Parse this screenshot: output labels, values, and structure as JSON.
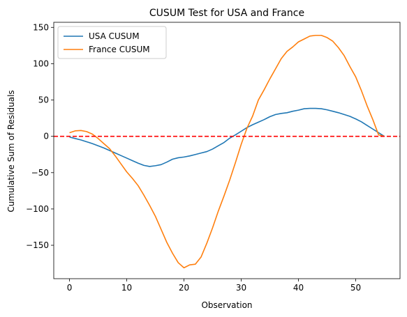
{
  "chart_data": {
    "type": "line",
    "title": "CUSUM Test for USA and France",
    "xlabel": "Observation",
    "ylabel": "Cumulative Sum of Residuals",
    "xlim": [
      -2.75,
      57.75
    ],
    "ylim": [
      -196,
      157
    ],
    "xticks": [
      0,
      10,
      20,
      30,
      40,
      50
    ],
    "yticks": [
      -150,
      -100,
      -50,
      0,
      50,
      100,
      150
    ],
    "grid": false,
    "legend_position": "top-left",
    "reference_line": {
      "y": 0,
      "color": "#ff0000",
      "style": "dashed"
    },
    "series": [
      {
        "name": "USA CUSUM",
        "color": "#1f77b4",
        "x": [
          0,
          1,
          2,
          3,
          4,
          5,
          6,
          7,
          8,
          9,
          10,
          11,
          12,
          13,
          14,
          15,
          16,
          17,
          18,
          19,
          20,
          21,
          22,
          23,
          24,
          25,
          26,
          27,
          28,
          29,
          30,
          31,
          32,
          33,
          34,
          35,
          36,
          37,
          38,
          39,
          40,
          41,
          42,
          43,
          44,
          45,
          46,
          47,
          48,
          49,
          50,
          51,
          52,
          53,
          54,
          55
        ],
        "y": [
          -1,
          -3,
          -5,
          -7.5,
          -10,
          -13,
          -16,
          -19.5,
          -23,
          -26.5,
          -30,
          -33.5,
          -37,
          -40,
          -41.5,
          -40.5,
          -39,
          -35.5,
          -31.5,
          -29.5,
          -28.5,
          -27,
          -25,
          -23,
          -21,
          -17.5,
          -13,
          -8.5,
          -2.5,
          2,
          7,
          12,
          16,
          19.5,
          23,
          27,
          30,
          31.5,
          32.5,
          34.5,
          36,
          38,
          38.5,
          38.5,
          38,
          36.5,
          34.5,
          32.5,
          30,
          27.5,
          24,
          20,
          15,
          10,
          5,
          0
        ]
      },
      {
        "name": "France CUSUM",
        "color": "#ff7f0e",
        "x": [
          0,
          1,
          2,
          3,
          4,
          5,
          6,
          7,
          8,
          9,
          10,
          11,
          12,
          13,
          14,
          15,
          16,
          17,
          18,
          19,
          20,
          21,
          22,
          23,
          24,
          25,
          26,
          27,
          28,
          29,
          30,
          31,
          32,
          33,
          34,
          35,
          36,
          37,
          38,
          39,
          40,
          41,
          42,
          43,
          44,
          45,
          46,
          47,
          48,
          49,
          50,
          51,
          52,
          53,
          54,
          55
        ],
        "y": [
          5,
          7.5,
          8,
          6.5,
          3,
          -3,
          -10,
          -17,
          -27,
          -38,
          -49,
          -58,
          -68,
          -81,
          -95,
          -110,
          -128,
          -146,
          -161,
          -174,
          -181,
          -177,
          -176,
          -166,
          -147,
          -126,
          -103,
          -82,
          -60,
          -36,
          -11,
          11,
          28,
          50,
          64,
          79,
          93,
          107,
          117,
          123,
          130,
          134,
          138,
          139,
          139,
          136,
          131,
          122,
          111,
          96,
          82,
          63,
          42,
          23,
          2,
          0
        ]
      }
    ]
  }
}
